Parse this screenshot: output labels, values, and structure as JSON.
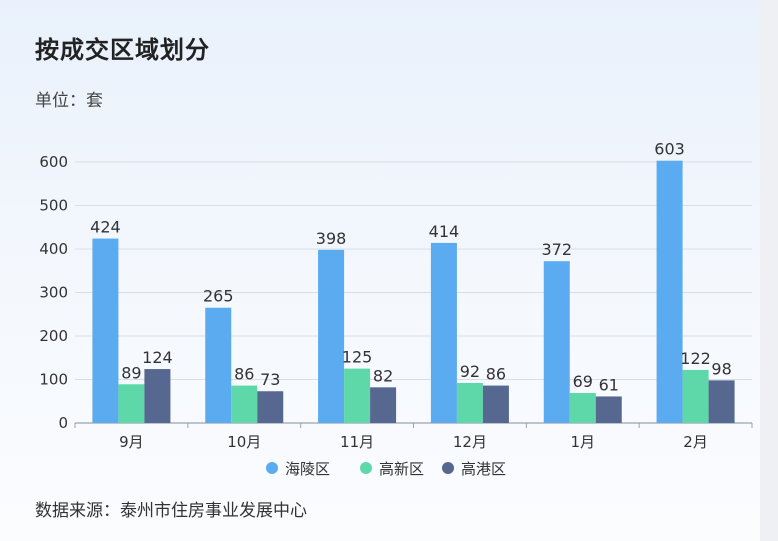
{
  "title": "按成交区域划分",
  "unit_label": "单位：套",
  "source": "数据来源：泰州市住房事业发展中心",
  "colors": {
    "海陵区": "#5aabf0",
    "高新区": "#5ed8a8",
    "高港区": "#56688f"
  },
  "chart_data": {
    "type": "bar",
    "categories": [
      "9月",
      "10月",
      "11月",
      "12月",
      "1月",
      "2月"
    ],
    "series": [
      {
        "name": "海陵区",
        "values": [
          424,
          265,
          398,
          414,
          372,
          603
        ]
      },
      {
        "name": "高新区",
        "values": [
          89,
          86,
          125,
          92,
          69,
          122
        ]
      },
      {
        "name": "高港区",
        "values": [
          124,
          73,
          82,
          86,
          61,
          98
        ]
      }
    ],
    "ylim": [
      0,
      600
    ],
    "yticks": [
      0,
      100,
      200,
      300,
      400,
      500,
      600
    ],
    "grid": true,
    "legend": "bottom"
  }
}
